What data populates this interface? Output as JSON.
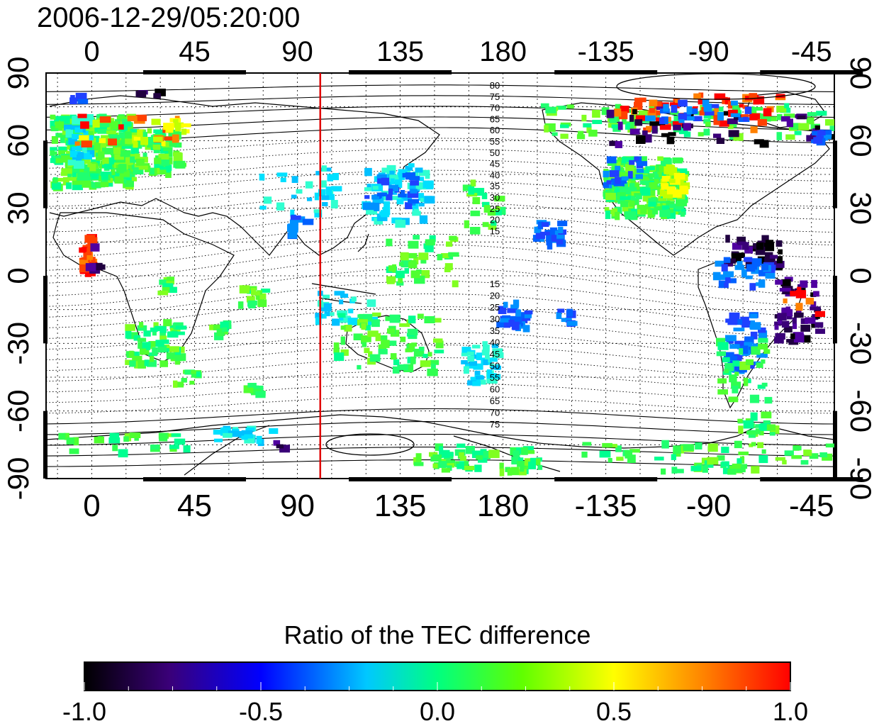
{
  "map": {
    "timestamp": "2006-12-29/05:20:00",
    "lon_labels": [
      "0",
      "45",
      "90",
      "135",
      "180",
      "-135",
      "-90",
      "-45"
    ],
    "lat_labels": [
      "90",
      "60",
      "30",
      "0",
      "-30",
      "-60",
      "-90"
    ],
    "contour_labels_north": [
      "80",
      "75",
      "70",
      "65",
      "60",
      "55",
      "50",
      "45",
      "40",
      "35",
      "30",
      "25",
      "20",
      "15"
    ],
    "contour_labels_south": [
      "15",
      "20",
      "25",
      "30",
      "35",
      "40",
      "45",
      "50",
      "55",
      "60",
      "65",
      "70",
      "75"
    ],
    "meridian_marker": {
      "lon": 100,
      "color": "#e00000"
    },
    "lon_range": [
      -20,
      325
    ],
    "lat_range": [
      -90,
      90
    ]
  },
  "colorbar": {
    "title": "Ratio of the TEC difference",
    "tick_labels": [
      "-1.0",
      "-0.5",
      "0.0",
      "0.5",
      "1.0"
    ],
    "range": [
      -1.0,
      1.0
    ]
  }
}
